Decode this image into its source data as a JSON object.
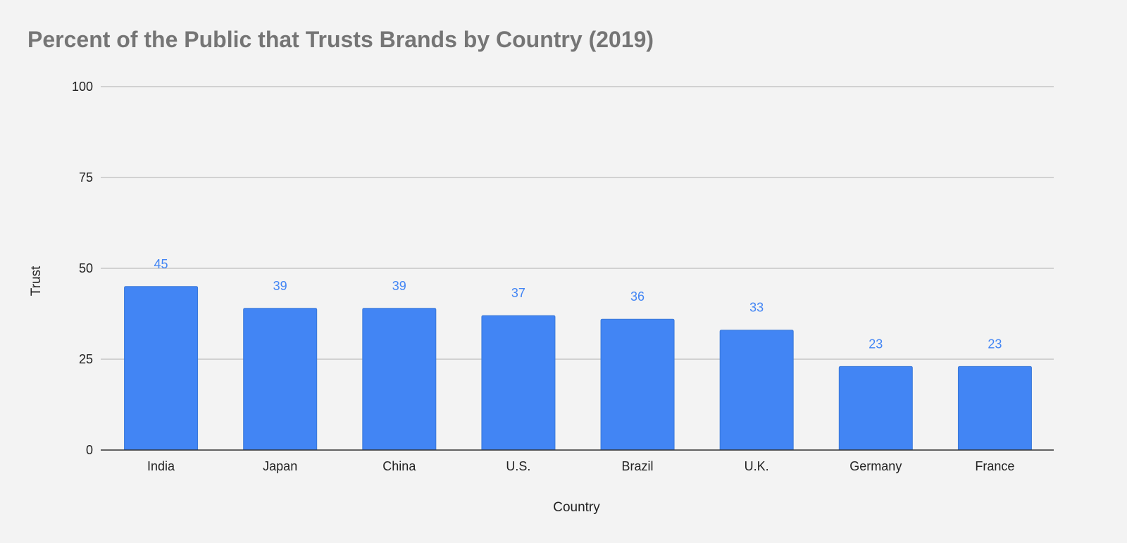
{
  "chart_data": {
    "type": "bar",
    "title": "Percent of the Public that Trusts Brands by Country (2019)",
    "xlabel": "Country",
    "ylabel": "Trust",
    "categories": [
      "India",
      "Japan",
      "China",
      "U.S.",
      "Brazil",
      "U.K.",
      "Germany",
      "France"
    ],
    "values": [
      45,
      39,
      39,
      37,
      36,
      33,
      23,
      23
    ],
    "value_labels": [
      "45",
      "39",
      "39",
      "37",
      "36",
      "33",
      "23",
      "23"
    ],
    "ylim": [
      0,
      100
    ],
    "yticks": [
      "0",
      "25",
      "50",
      "75",
      "100"
    ],
    "grid": true,
    "legend": "none",
    "colors": {
      "bar": "#4285f4",
      "bar_border": "#3a78d8",
      "value_label": "#4285f4",
      "gridline": "#bdbdbd",
      "baseline": "#333333"
    }
  }
}
